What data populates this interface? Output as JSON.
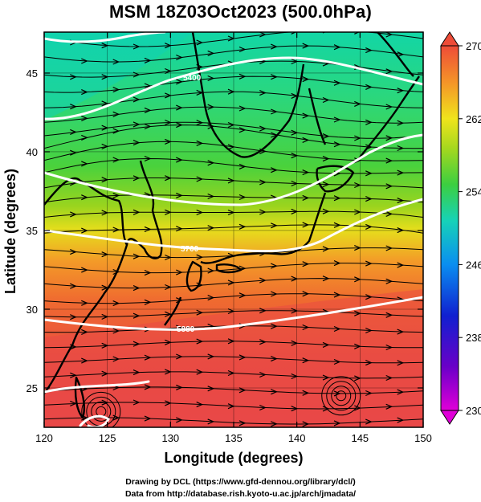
{
  "title": "MSM 18Z03Oct2023 (500.0hPa)",
  "x_axis": {
    "label": "Longitude (degrees)",
    "range": [
      120,
      150
    ],
    "ticks": [
      120,
      125,
      130,
      135,
      140,
      145,
      150
    ],
    "tick_labels": [
      "120",
      "125",
      "130",
      "135",
      "140",
      "145",
      "150"
    ]
  },
  "y_axis": {
    "label": "Latitude  (degrees)",
    "range": [
      22.5,
      47.6
    ],
    "ticks": [
      25,
      30,
      35,
      40,
      45
    ],
    "tick_labels": [
      "25",
      "30",
      "35",
      "40",
      "45"
    ]
  },
  "colorbar": {
    "min": 230,
    "max": 270,
    "tick_values": [
      230,
      238,
      246,
      254,
      262,
      270
    ],
    "tick_labels": [
      "230",
      "238",
      "246",
      "254",
      "262",
      "270"
    ],
    "extend": "both"
  },
  "contour_labels": [
    "5400",
    "5700",
    "5880"
  ],
  "credits": [
    "Drawing by DCL (https://www.gfd-dennou.org/library/dcl/)",
    "Data from http://database.rish.kyoto-u.ac.jp/arch/jmadata/"
  ],
  "colors": {
    "cold": "#00c8b4",
    "green": "#3cd23c",
    "yellow": "#f0e61e",
    "orange": "#f08228",
    "red": "#eb4646",
    "contour": "#ffffff",
    "streamline": "#000000"
  }
}
